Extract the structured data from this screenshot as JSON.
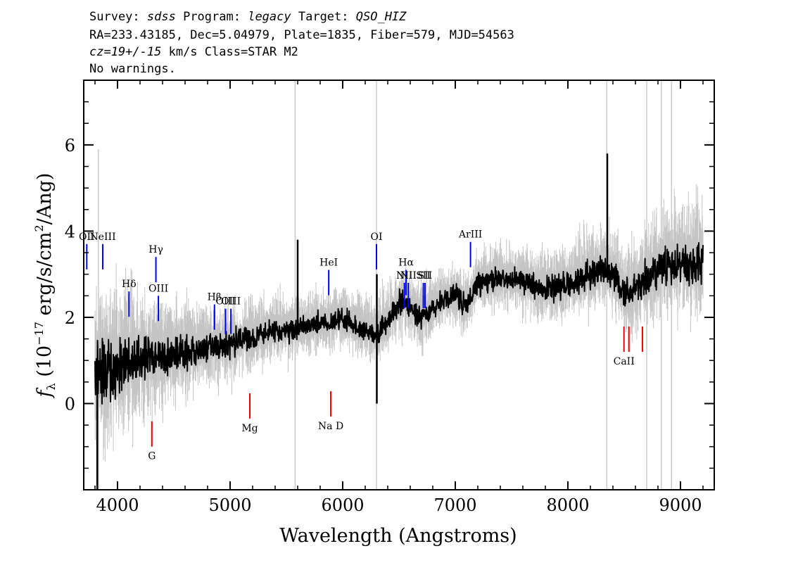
{
  "header": {
    "line1": {
      "survey_label": "Survey: ",
      "survey": "sdss",
      "program_label": " Program: ",
      "program": "legacy",
      "target_label": " Target: ",
      "target": "QSO_HIZ"
    },
    "line2": "RA=233.43185, Dec=5.04979, Plate=1835, Fiber=579, MJD=54563",
    "line3": {
      "cz": "cz=19+/-15",
      "rest": " km/s Class=STAR M2"
    },
    "line4": "No warnings."
  },
  "chart_data": {
    "type": "line",
    "xlabel": "Wavelength (Angstroms)",
    "ylabel": "f_λ (10^-17 erg/s/cm²/Ang)",
    "ylabel_parts": {
      "f": "f",
      "sub": "λ",
      "open": " (10",
      "exp1": "−17",
      "mid": " erg/s/cm",
      "exp2": "2",
      "close": "/Ang)"
    },
    "xlim": [
      3700,
      9300
    ],
    "ylim": [
      -2.0,
      7.5
    ],
    "x_ticks": [
      4000,
      5000,
      6000,
      7000,
      8000,
      9000
    ],
    "x_tick_labels": [
      "4000",
      "5000",
      "6000",
      "7000",
      "8000",
      "9000"
    ],
    "y_ticks": [
      0,
      2,
      4,
      6
    ],
    "y_tick_labels": [
      "0",
      "2",
      "4",
      "6"
    ],
    "grid": false,
    "colors": {
      "flux": "#000000",
      "error_band": "#c4c4c4",
      "emission": "#0000ee",
      "absorption": "#ee0000"
    },
    "series": [
      {
        "role": "flux",
        "x": [
          3800,
          3900,
          4000,
          4100,
          4200,
          4300,
          4400,
          4500,
          4600,
          4700,
          4800,
          4900,
          5000,
          5100,
          5200,
          5300,
          5400,
          5500,
          5600,
          5700,
          5800,
          5900,
          6000,
          6100,
          6200,
          6300,
          6400,
          6500,
          6550,
          6600,
          6700,
          6800,
          6900,
          7000,
          7100,
          7200,
          7300,
          7400,
          7500,
          7600,
          7700,
          7800,
          7900,
          8000,
          8100,
          8200,
          8300,
          8400,
          8500,
          8600,
          8700,
          8800,
          8900,
          9000,
          9100,
          9200
        ],
        "y": [
          0.6,
          0.8,
          0.9,
          0.95,
          1.0,
          1.05,
          1.1,
          1.15,
          1.2,
          1.25,
          1.3,
          1.35,
          1.4,
          1.5,
          1.55,
          1.6,
          1.65,
          1.7,
          1.75,
          1.8,
          1.85,
          1.9,
          1.95,
          1.8,
          1.7,
          1.6,
          1.9,
          2.3,
          2.4,
          2.2,
          2.0,
          2.2,
          2.4,
          2.5,
          2.3,
          2.8,
          2.85,
          2.9,
          2.85,
          2.8,
          2.75,
          2.7,
          2.7,
          2.75,
          2.9,
          3.0,
          3.1,
          3.0,
          2.5,
          2.6,
          2.9,
          3.1,
          3.2,
          3.3,
          3.2,
          3.3
        ]
      },
      {
        "role": "error",
        "x": [
          3800,
          4000,
          4500,
          5000,
          5500,
          6000,
          6500,
          7000,
          7500,
          8000,
          8500,
          9000,
          9200
        ],
        "y": [
          1.5,
          1.2,
          0.8,
          0.6,
          0.5,
          0.5,
          0.5,
          0.5,
          0.5,
          0.6,
          0.7,
          0.9,
          1.0
        ]
      }
    ],
    "spikes": [
      {
        "x": 3830,
        "y_top": 5.9,
        "y_bottom": -2.0,
        "color": "error_band"
      },
      {
        "x": 5577,
        "y_top": 7.5,
        "y_bottom": -2.0,
        "color": "error_band"
      },
      {
        "x": 5600,
        "y_top": 3.8,
        "y_bottom": 1.6,
        "color": "flux"
      },
      {
        "x": 6300,
        "y_top": 7.5,
        "y_bottom": -2.0,
        "color": "error_band"
      },
      {
        "x": 6303,
        "y_top": 3.0,
        "y_bottom": 0.0,
        "color": "flux"
      },
      {
        "x": 8345,
        "y_top": 7.5,
        "y_bottom": -2.0,
        "color": "error_band"
      },
      {
        "x": 8350,
        "y_top": 5.8,
        "y_bottom": 3.0,
        "color": "flux"
      },
      {
        "x": 8700,
        "y_top": 7.5,
        "y_bottom": -2.0,
        "color": "error_band"
      },
      {
        "x": 8830,
        "y_top": 7.5,
        "y_bottom": -2.0,
        "color": "error_band"
      },
      {
        "x": 8920,
        "y_top": 7.5,
        "y_bottom": -2.0,
        "color": "error_band"
      },
      {
        "x": 3820,
        "y_top": 1.0,
        "y_bottom": -2.0,
        "color": "flux"
      }
    ],
    "emission_lines": [
      {
        "label": "OII",
        "x": 3727,
        "y": 3.7
      },
      {
        "label": "NeIII",
        "x": 3869,
        "y": 3.7
      },
      {
        "label": "Hδ",
        "x": 4102,
        "y": 2.6
      },
      {
        "label": "Hγ",
        "x": 4341,
        "y": 3.4
      },
      {
        "label": "OIII",
        "x": 4363,
        "y": 2.5
      },
      {
        "label": "Hβ",
        "x": 4861,
        "y": 2.3
      },
      {
        "label": "OIII",
        "x": 4959,
        "y": 2.2
      },
      {
        "label": "OIII",
        "x": 5007,
        "y": 2.2
      },
      {
        "label": "HeI",
        "x": 5876,
        "y": 3.1
      },
      {
        "label": "OI",
        "x": 6300,
        "y": 3.7
      },
      {
        "label": "NII",
        "x": 6548,
        "y": 2.8
      },
      {
        "label": "Hα",
        "x": 6563,
        "y": 3.1
      },
      {
        "label": "NII",
        "x": 6583,
        "y": 2.8
      },
      {
        "label": "SII",
        "x": 6716,
        "y": 2.8
      },
      {
        "label": "SII",
        "x": 6731,
        "y": 2.8
      },
      {
        "label": "ArIII",
        "x": 7135,
        "y": 3.75
      }
    ],
    "absorption_lines": [
      {
        "label": "G",
        "x": 4305,
        "y": -1.0
      },
      {
        "label": "Mg",
        "x": 5175,
        "y": -0.35
      },
      {
        "label": "Na D",
        "x": 5894,
        "y": -0.3
      },
      {
        "label": "CaII",
        "x": 8498,
        "y": 1.2
      },
      {
        "label": "CaII",
        "x": 8542,
        "y": 1.2
      },
      {
        "label": "CaII",
        "x": 8662,
        "y": 1.2
      }
    ]
  }
}
